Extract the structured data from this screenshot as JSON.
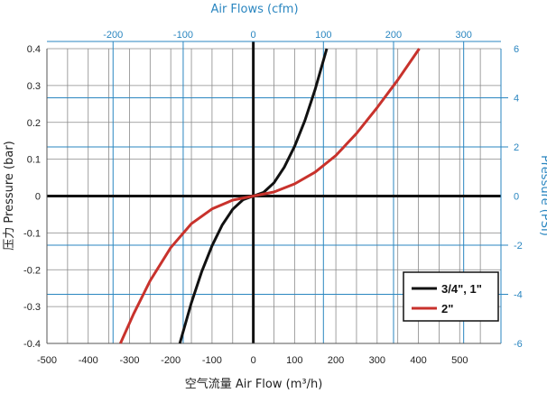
{
  "chart_data": {
    "type": "line",
    "xlabel": "空气流量 Air Flow (m³/h)",
    "ylabel": "压力 Pressure (bar)",
    "x2label": "Air Flows (cfm)",
    "y2label": "Pressure (PSI)",
    "xlim": [
      -500,
      600
    ],
    "ylim": [
      -0.4,
      0.4
    ],
    "x2lim": [
      -294.3,
      353.2
    ],
    "y2lim": [
      -6,
      6
    ],
    "xticks": [
      -500,
      -400,
      -300,
      -200,
      -100,
      0,
      100,
      200,
      300,
      400,
      500
    ],
    "yticks": [
      -0.4,
      -0.3,
      -0.2,
      -0.1,
      0,
      0.1,
      0.2,
      0.3,
      0.4
    ],
    "yticklabels": [
      "-0.4",
      "-0.3",
      "-0.2",
      "-0.1",
      "0",
      "0.1",
      "0.2",
      "0.3",
      "0.4"
    ],
    "x2ticks": [
      -200,
      -100,
      0,
      100,
      200,
      300
    ],
    "y2ticks": [
      -6,
      -4,
      -2,
      0,
      2,
      4,
      6
    ],
    "grid": true,
    "legend_position": "bottom-right",
    "series": [
      {
        "name": "3/4\", 1\"",
        "color": "#111111",
        "x": [
          -178,
          -150,
          -125,
          -100,
          -75,
          -50,
          -25,
          0,
          25,
          50,
          75,
          100,
          125,
          150,
          178
        ],
        "y": [
          -0.4,
          -0.29,
          -0.205,
          -0.135,
          -0.078,
          -0.036,
          -0.01,
          0,
          0.01,
          0.036,
          0.078,
          0.135,
          0.205,
          0.29,
          0.4
        ]
      },
      {
        "name": "2\"",
        "color": "#c8322c",
        "x": [
          -322,
          -290,
          -250,
          -200,
          -150,
          -100,
          -50,
          0,
          50,
          100,
          150,
          200,
          250,
          300,
          350,
          402
        ],
        "y": [
          -0.4,
          -0.32,
          -0.23,
          -0.14,
          -0.075,
          -0.035,
          -0.011,
          0,
          0.011,
          0.033,
          0.065,
          0.11,
          0.17,
          0.24,
          0.315,
          0.4
        ]
      }
    ]
  }
}
